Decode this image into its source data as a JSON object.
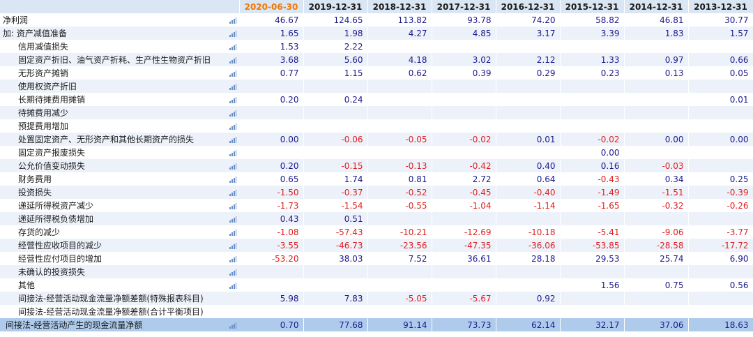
{
  "header": {
    "dates": [
      "2020-06-30",
      "2019-12-31",
      "2018-12-31",
      "2017-12-31",
      "2016-12-31",
      "2015-12-31",
      "2014-12-31",
      "2013-12-31"
    ]
  },
  "icon_name": "bar-chart-icon",
  "colors": {
    "highlight_date": "#f07800",
    "positive": "#1a1a8c",
    "negative": "#e02020",
    "header_bg": "#dbe6f4",
    "total_bg": "#aecbec"
  },
  "rows": [
    {
      "label": "净利润",
      "values": [
        "46.67",
        "124.65",
        "113.82",
        "93.78",
        "74.20",
        "58.82",
        "46.81",
        "30.77"
      ]
    },
    {
      "label": "加: 资产减值准备",
      "values": [
        "1.65",
        "1.98",
        "4.27",
        "4.85",
        "3.17",
        "3.39",
        "1.83",
        "1.57"
      ]
    },
    {
      "label": "信用减值损失",
      "values": [
        "1.53",
        "2.22",
        "",
        "",
        "",
        "",
        "",
        ""
      ]
    },
    {
      "label": "固定资产折旧、油气资产折耗、生产性生物资产折旧",
      "values": [
        "3.68",
        "5.60",
        "4.18",
        "3.02",
        "2.12",
        "1.33",
        "0.97",
        "0.66"
      ]
    },
    {
      "label": "无形资产摊销",
      "values": [
        "0.77",
        "1.15",
        "0.62",
        "0.39",
        "0.29",
        "0.23",
        "0.13",
        "0.05"
      ]
    },
    {
      "label": "使用权资产折旧",
      "values": [
        "",
        "",
        "",
        "",
        "",
        "",
        "",
        ""
      ]
    },
    {
      "label": "长期待摊费用摊销",
      "values": [
        "0.20",
        "0.24",
        "",
        "",
        "",
        "",
        "",
        "0.01"
      ]
    },
    {
      "label": "待摊费用减少",
      "values": [
        "",
        "",
        "",
        "",
        "",
        "",
        "",
        ""
      ]
    },
    {
      "label": "预提费用增加",
      "values": [
        "",
        "",
        "",
        "",
        "",
        "",
        "",
        ""
      ]
    },
    {
      "label": "处置固定资产、无形资产和其他长期资产的损失",
      "values": [
        "0.00",
        "-0.06",
        "-0.05",
        "-0.02",
        "0.01",
        "-0.02",
        "0.00",
        "0.00"
      ]
    },
    {
      "label": "固定资产报废损失",
      "values": [
        "",
        "",
        "",
        "",
        "",
        "0.00",
        "",
        ""
      ]
    },
    {
      "label": "公允价值变动损失",
      "values": [
        "0.20",
        "-0.15",
        "-0.13",
        "-0.42",
        "0.40",
        "0.16",
        "-0.03",
        ""
      ]
    },
    {
      "label": "财务费用",
      "values": [
        "0.65",
        "1.74",
        "0.81",
        "2.72",
        "0.64",
        "-0.43",
        "0.34",
        "0.25"
      ]
    },
    {
      "label": "投资损失",
      "values": [
        "-1.50",
        "-0.37",
        "-0.52",
        "-0.45",
        "-0.40",
        "-1.49",
        "-1.51",
        "-0.39"
      ]
    },
    {
      "label": "递延所得税资产减少",
      "values": [
        "-1.73",
        "-1.54",
        "-0.55",
        "-1.04",
        "-1.14",
        "-1.65",
        "-0.32",
        "-0.26"
      ]
    },
    {
      "label": "递延所得税负债增加",
      "values": [
        "0.43",
        "0.51",
        "",
        "",
        "",
        "",
        "",
        ""
      ]
    },
    {
      "label": "存货的减少",
      "values": [
        "-1.08",
        "-57.43",
        "-10.21",
        "-12.69",
        "-10.18",
        "-5.41",
        "-9.06",
        "-3.77"
      ]
    },
    {
      "label": "经营性应收项目的减少",
      "values": [
        "-3.55",
        "-46.73",
        "-23.56",
        "-47.35",
        "-36.06",
        "-53.85",
        "-28.58",
        "-17.72"
      ]
    },
    {
      "label": "经营性应付项目的增加",
      "values": [
        "-53.20",
        "38.03",
        "7.52",
        "36.61",
        "28.18",
        "29.53",
        "25.74",
        "6.90"
      ]
    },
    {
      "label": "未确认的投资损失",
      "values": [
        "",
        "",
        "",
        "",
        "",
        "",
        "",
        ""
      ]
    },
    {
      "label": "其他",
      "values": [
        "",
        "",
        "",
        "",
        "",
        "1.56",
        "0.75",
        "0.56"
      ]
    },
    {
      "label": "间接法-经营活动现金流量净额差额(特殊报表科目)",
      "values": [
        "5.98",
        "7.83",
        "-5.05",
        "-5.67",
        "0.92",
        "",
        "",
        ""
      ]
    },
    {
      "label": "间接法-经营活动现金流量净额差额(合计平衡项目)",
      "values": [
        "",
        "",
        "",
        "",
        "",
        "",
        "",
        ""
      ]
    },
    {
      "label": "间接法-经营活动产生的现金流量净额",
      "values": [
        "0.70",
        "77.68",
        "91.14",
        "73.73",
        "62.14",
        "32.17",
        "37.06",
        "18.63"
      ]
    }
  ]
}
